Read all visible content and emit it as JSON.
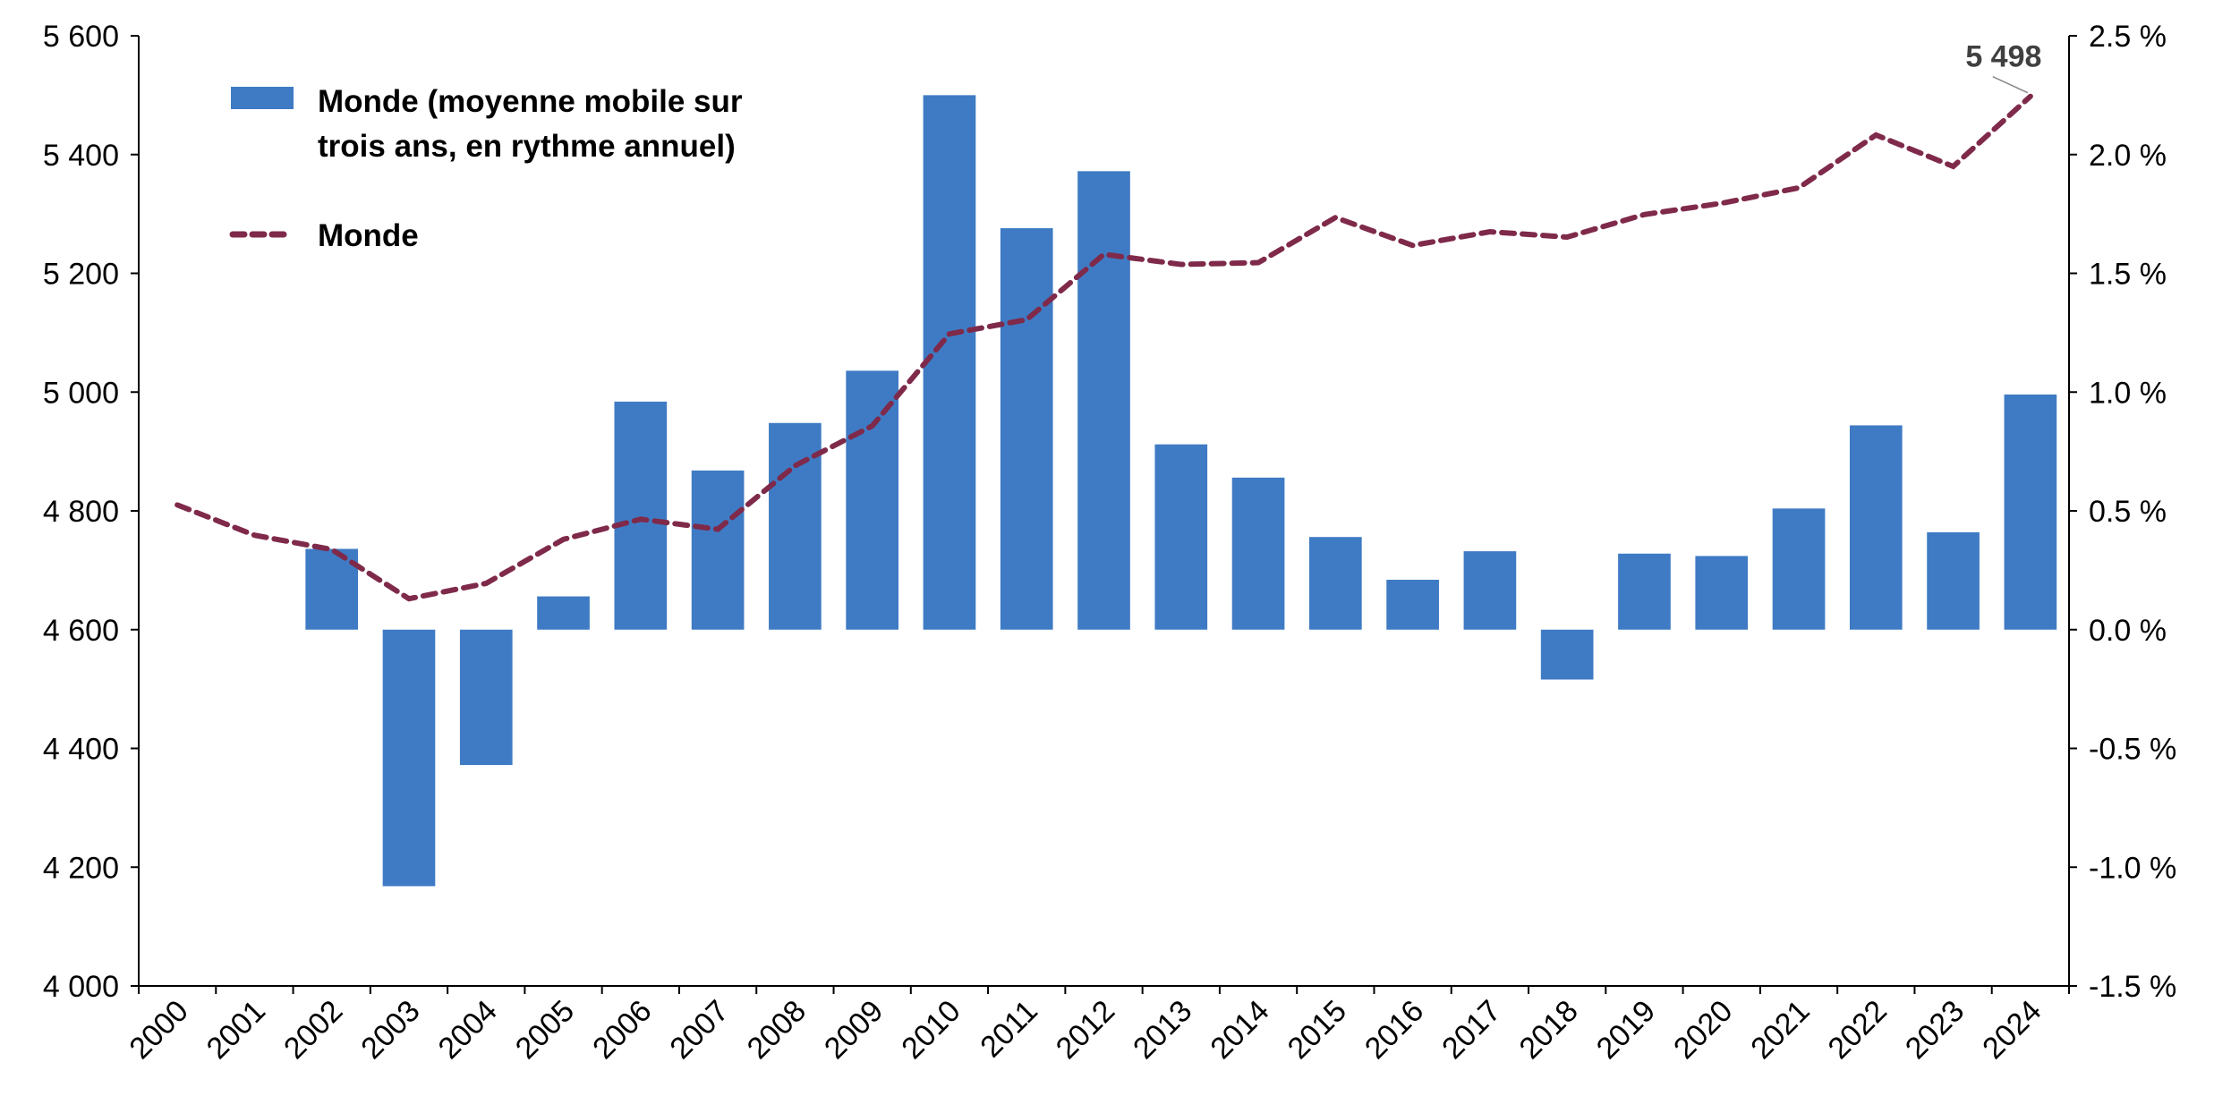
{
  "chart_data": {
    "type": "bar+line",
    "categories": [
      "2000",
      "2001",
      "2002",
      "2003",
      "2004",
      "2005",
      "2006",
      "2007",
      "2008",
      "2009",
      "2010",
      "2011",
      "2012",
      "2013",
      "2014",
      "2015",
      "2016",
      "2017",
      "2018",
      "2019",
      "2020",
      "2021",
      "2022",
      "2023",
      "2024"
    ],
    "left_axis": {
      "range": [
        4000,
        5600
      ],
      "ticks": [
        "4 000",
        "4 200",
        "4 400",
        "4 600",
        "4 800",
        "5 000",
        "5 200",
        "5 400",
        "5 600"
      ],
      "tick_values": [
        4000,
        4200,
        4400,
        4600,
        4800,
        5000,
        5200,
        5400,
        5600
      ]
    },
    "right_axis": {
      "range": [
        -1.5,
        2.5
      ],
      "ticks": [
        "-1.5 %",
        "-1.0 %",
        "-0.5 %",
        "0.0 %",
        "0.5 %",
        "1.0 %",
        "1.5 %",
        "2.0 %",
        "2.5 %"
      ],
      "tick_values": [
        -1.5,
        -1.0,
        -0.5,
        0,
        0.5,
        1.0,
        1.5,
        2.0,
        2.5
      ]
    },
    "series": [
      {
        "name": "Monde (moyenne mobile sur trois ans, en rythme annuel)",
        "name_lines": [
          "Monde (moyenne mobile sur",
          "trois ans, en rythme annuel)"
        ],
        "type": "bar",
        "axis": "right",
        "color": "#3f7bc4",
        "values": [
          null,
          null,
          0.34,
          -1.08,
          -0.57,
          0.14,
          0.96,
          0.67,
          0.87,
          1.09,
          2.25,
          1.69,
          1.93,
          0.78,
          0.64,
          0.39,
          0.21,
          0.33,
          -0.21,
          0.32,
          0.31,
          0.51,
          0.86,
          0.41,
          0.99
        ]
      },
      {
        "name": "Monde",
        "type": "line",
        "style": "dashed",
        "axis": "left",
        "color": "#7f2a4a",
        "values": [
          4810,
          4759,
          4735,
          4652,
          4678,
          4752,
          4786,
          4769,
          4876,
          4943,
          5098,
          5122,
          5232,
          5215,
          5218,
          5294,
          5247,
          5270,
          5261,
          5299,
          5318,
          5344,
          5433,
          5380,
          5498
        ]
      }
    ],
    "annotation": {
      "text": "5 498",
      "category": "2024"
    },
    "legend": "top-left",
    "grid": false
  }
}
